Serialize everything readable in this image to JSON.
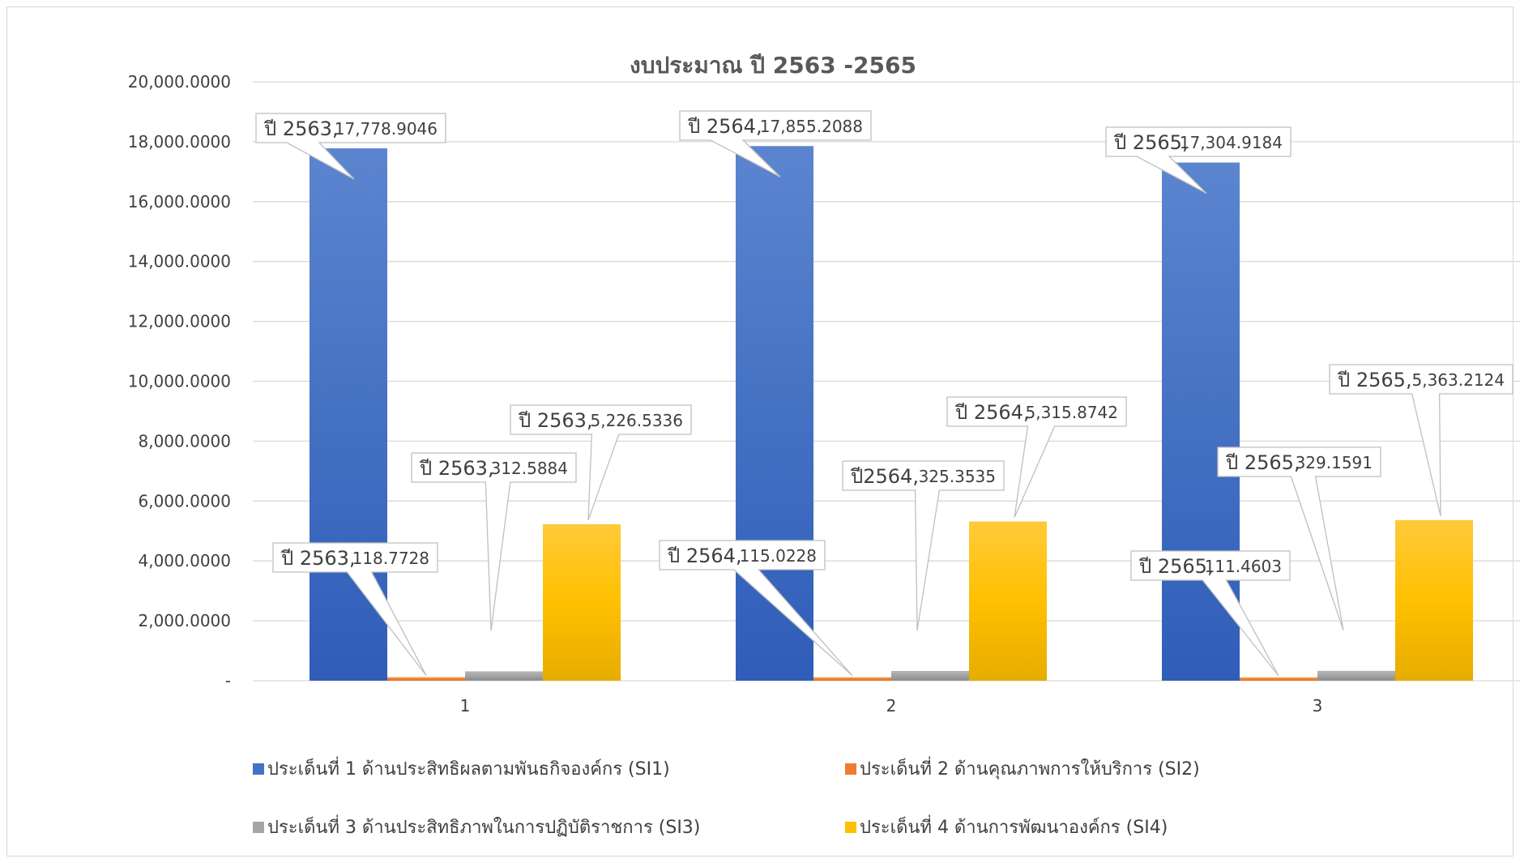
{
  "chart_data": {
    "type": "bar",
    "title": "งบประมาณ ปี 2563 -2565",
    "xlabel": "",
    "ylabel": "",
    "categories": [
      "1",
      "2",
      "3"
    ],
    "ylim": [
      0,
      20000
    ],
    "y_ticks": [
      "-",
      "2,000.0000",
      "4,000.0000",
      "6,000.0000",
      "8,000.0000",
      "10,000.0000",
      "12,000.0000",
      "14,000.0000",
      "16,000.0000",
      "18,000.0000",
      "20,000.0000"
    ],
    "grid": true,
    "legend_position": "bottom",
    "series": [
      {
        "name": "ประเด็นที่ 1  ด้านประสิทธิผลตามพันธกิจองค์กร (SI1)",
        "color": "#4472c4",
        "values": [
          17778.9046,
          17855.2088,
          17304.9184
        ],
        "labels": [
          {
            "series": "ปี 2563,",
            "value": "17,778.9046"
          },
          {
            "series": "ปี 2564,",
            "value": "17,855.2088"
          },
          {
            "series": "ปี 2565,",
            "value": "17,304.9184"
          }
        ]
      },
      {
        "name": "ประเด็นที่ 2 ด้านคุณภาพการให้บริการ (SI2)",
        "color": "#ed7d31",
        "values": [
          118.7728,
          115.0228,
          111.4603
        ],
        "labels": [
          {
            "series": "ปี 2563,",
            "value": "118.7728"
          },
          {
            "series": "ปี 2564,",
            "value": "115.0228"
          },
          {
            "series": "ปี 2565,",
            "value": "111.4603"
          }
        ]
      },
      {
        "name": "ประเด็นที่ 3 ด้านประสิทธิภาพในการปฏิบัติราชการ (SI3)",
        "color": "#a5a5a5",
        "values": [
          312.5884,
          325.3535,
          329.1591
        ],
        "labels": [
          {
            "series": "ปี 2563,",
            "value": "312.5884"
          },
          {
            "series": "ปี2564,",
            "value": "325.3535"
          },
          {
            "series": "ปี 2565,",
            "value": "329.1591"
          }
        ]
      },
      {
        "name": "ประเด็นที่ 4 ด้านการพัฒนาองค์กร (SI4)",
        "color": "#ffc000",
        "values": [
          5226.5336,
          5315.8742,
          5363.2124
        ],
        "labels": [
          {
            "series": "ปี 2563,",
            "value": "5,226.5336"
          },
          {
            "series": "ปี 2564,",
            "value": "5,315.8742"
          },
          {
            "series": "ปี 2565,",
            "value": "5,363.2124"
          }
        ]
      }
    ]
  }
}
